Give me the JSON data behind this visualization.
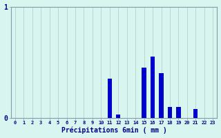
{
  "xlabel": "Précipitations 6min ( mm )",
  "hours": [
    0,
    1,
    2,
    3,
    4,
    5,
    6,
    7,
    8,
    9,
    10,
    11,
    12,
    13,
    14,
    15,
    16,
    17,
    18,
    19,
    20,
    21,
    22,
    23
  ],
  "values": [
    0,
    0,
    0,
    0,
    0,
    0,
    0,
    0,
    0,
    0,
    0,
    0.35,
    0.03,
    0,
    0,
    0.45,
    0.55,
    0.4,
    0.1,
    0.1,
    0,
    0.08,
    0,
    0
  ],
  "bar_color": "#0000cc",
  "bg_color": "#d8f5f0",
  "grid_color": "#b8d8d0",
  "axis_color": "#8899aa",
  "ylim": [
    0,
    1.0
  ],
  "yticks": [
    0,
    1
  ],
  "ytick_labels": [
    "0",
    "1"
  ],
  "xlim": [
    -0.5,
    23.5
  ],
  "bar_width": 0.5
}
